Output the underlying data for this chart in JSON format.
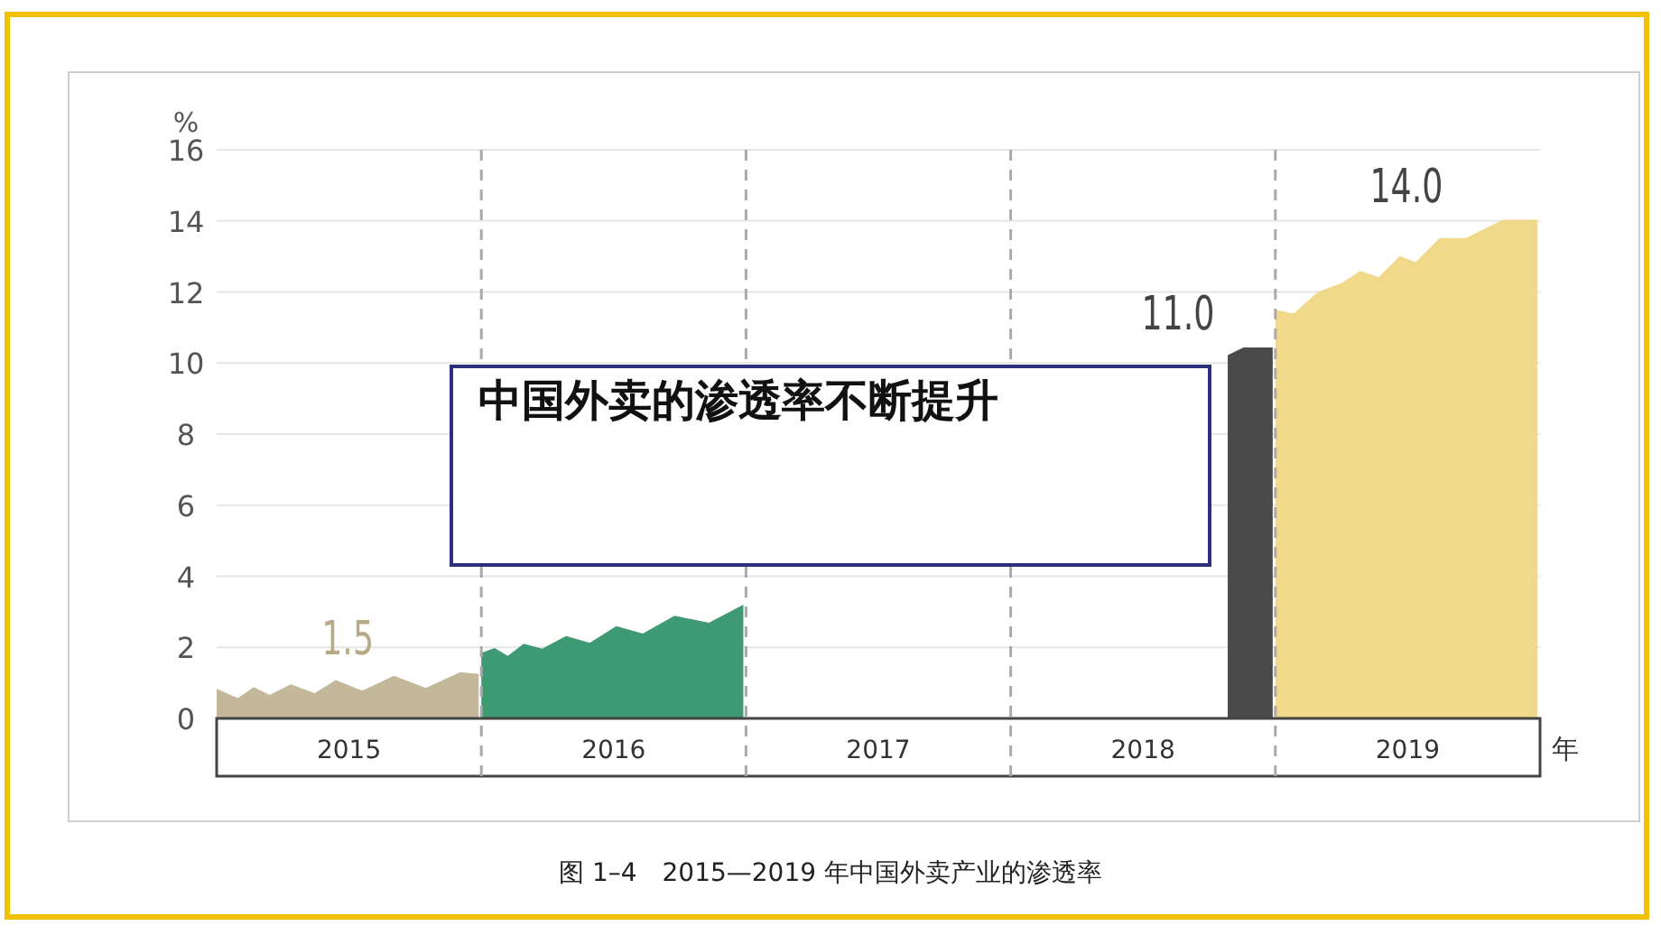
{
  "chart_data": {
    "type": "area",
    "title": "中国外卖的渗透率不断提升",
    "xlabel": "年",
    "ylabel": "%",
    "xlim": [
      2015,
      2020
    ],
    "xticks": [
      {
        "value": 2015.5,
        "label": "2015"
      },
      {
        "value": 2016.5,
        "label": "2016"
      },
      {
        "value": 2017.5,
        "label": "2017"
      },
      {
        "value": 2018.5,
        "label": "2018"
      },
      {
        "value": 2019.5,
        "label": "2019"
      }
    ],
    "ylim": [
      0,
      16
    ],
    "yticks": [
      0,
      2,
      4,
      6,
      8,
      10,
      12,
      14,
      16
    ],
    "grid": "y",
    "series": [
      {
        "color": "#c4b89a",
        "x": [
          2015,
          2015.08,
          2015.14,
          2015.2,
          2015.28,
          2015.37,
          2015.45,
          2015.55,
          2015.67,
          2015.79,
          2015.92,
          2015.99
        ],
        "values": [
          0.83,
          0.57,
          0.88,
          0.66,
          0.96,
          0.71,
          1.08,
          0.78,
          1.2,
          0.86,
          1.3,
          1.25
        ]
      },
      {
        "color": "#3e9a73",
        "x": [
          2016,
          2016.05,
          2016.1,
          2016.16,
          2016.23,
          2016.32,
          2016.41,
          2016.51,
          2016.61,
          2016.73,
          2016.86,
          2016.99
        ],
        "values": [
          1.84,
          1.98,
          1.76,
          2.1,
          1.96,
          2.32,
          2.13,
          2.6,
          2.39,
          2.89,
          2.69,
          3.2
        ]
      },
      {
        "color": "#4a4a4a",
        "x": [
          2018.82,
          2018.88,
          2018.99
        ],
        "values": [
          10.22,
          10.44,
          10.44
        ]
      },
      {
        "color": "#f0d98a",
        "x": [
          2019,
          2019.07,
          2019.16,
          2019.25,
          2019.32,
          2019.39,
          2019.47,
          2019.53,
          2019.62,
          2019.72,
          2019.86,
          2019.99
        ],
        "values": [
          11.49,
          11.4,
          12.0,
          12.25,
          12.59,
          12.42,
          13.01,
          12.84,
          13.52,
          13.52,
          14.03,
          14.03
        ]
      }
    ],
    "ref_lines": [
      {
        "axis": "x",
        "value": 2016,
        "color": "#aaaaaa",
        "line_style": "dashed"
      },
      {
        "axis": "x",
        "value": 2017,
        "color": "#aaaaaa",
        "line_style": "dashed"
      },
      {
        "axis": "x",
        "value": 2018,
        "color": "#aaaaaa",
        "line_style": "dashed"
      },
      {
        "axis": "x",
        "value": 2019,
        "color": "#aaaaaa",
        "line_style": "dashed"
      }
    ],
    "annotations": [
      "1.5",
      "11.0",
      "14.0",
      "图 1–4　2015—2019 年中国外卖产业的渗透率"
    ]
  }
}
